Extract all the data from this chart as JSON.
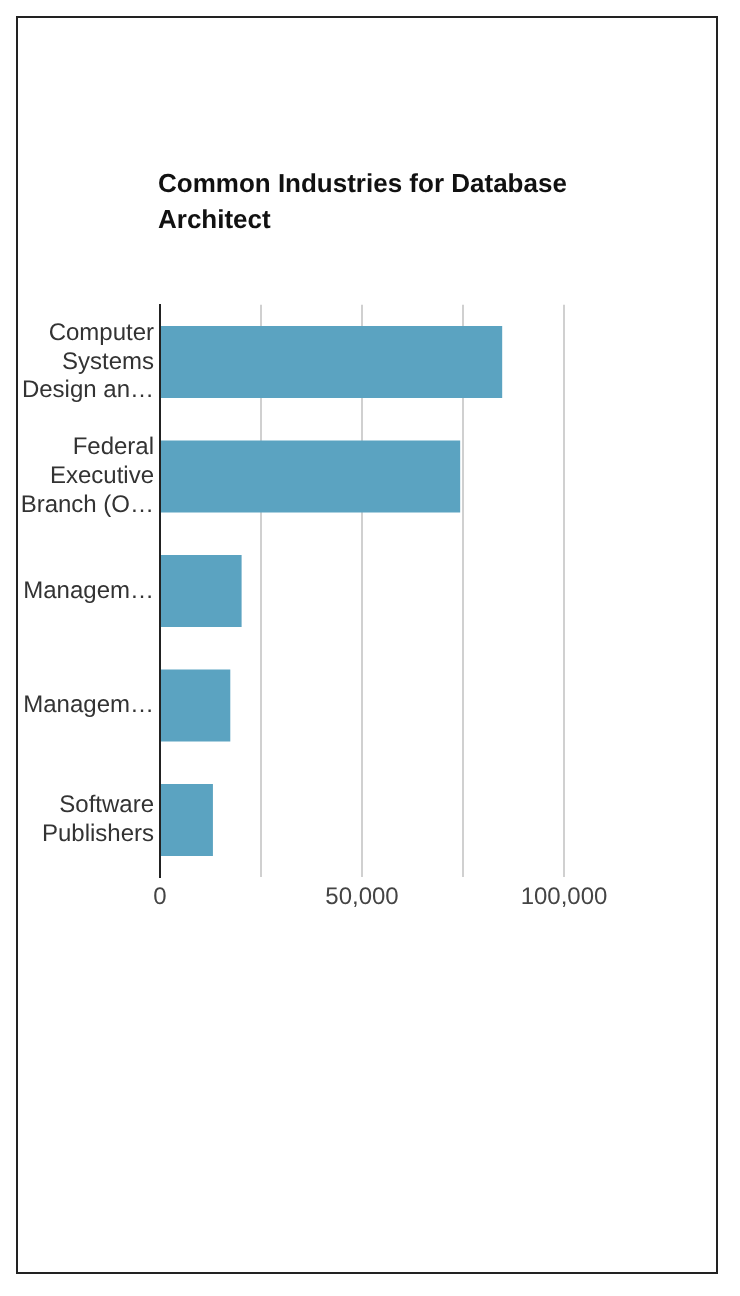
{
  "chart_data": {
    "type": "bar",
    "orientation": "horizontal",
    "title": "Common Industries for Database Architect",
    "categories": [
      "Computer Systems Design an…",
      "Federal Executive Branch (O…",
      "Managem…",
      "Managem…",
      "Software Publishers"
    ],
    "values": [
      84700,
      74300,
      20200,
      17400,
      13100
    ],
    "color": "#5ba3c1",
    "xlim": [
      0,
      100000
    ],
    "xticks": [
      0,
      {
        "value": 25000,
        "label": null
      },
      {
        "value": 50000,
        "label": "50,000"
      },
      {
        "value": 75000,
        "label": null
      },
      {
        "value": 100000,
        "label": "100,000"
      }
    ],
    "grid": "x",
    "legend": false
  }
}
